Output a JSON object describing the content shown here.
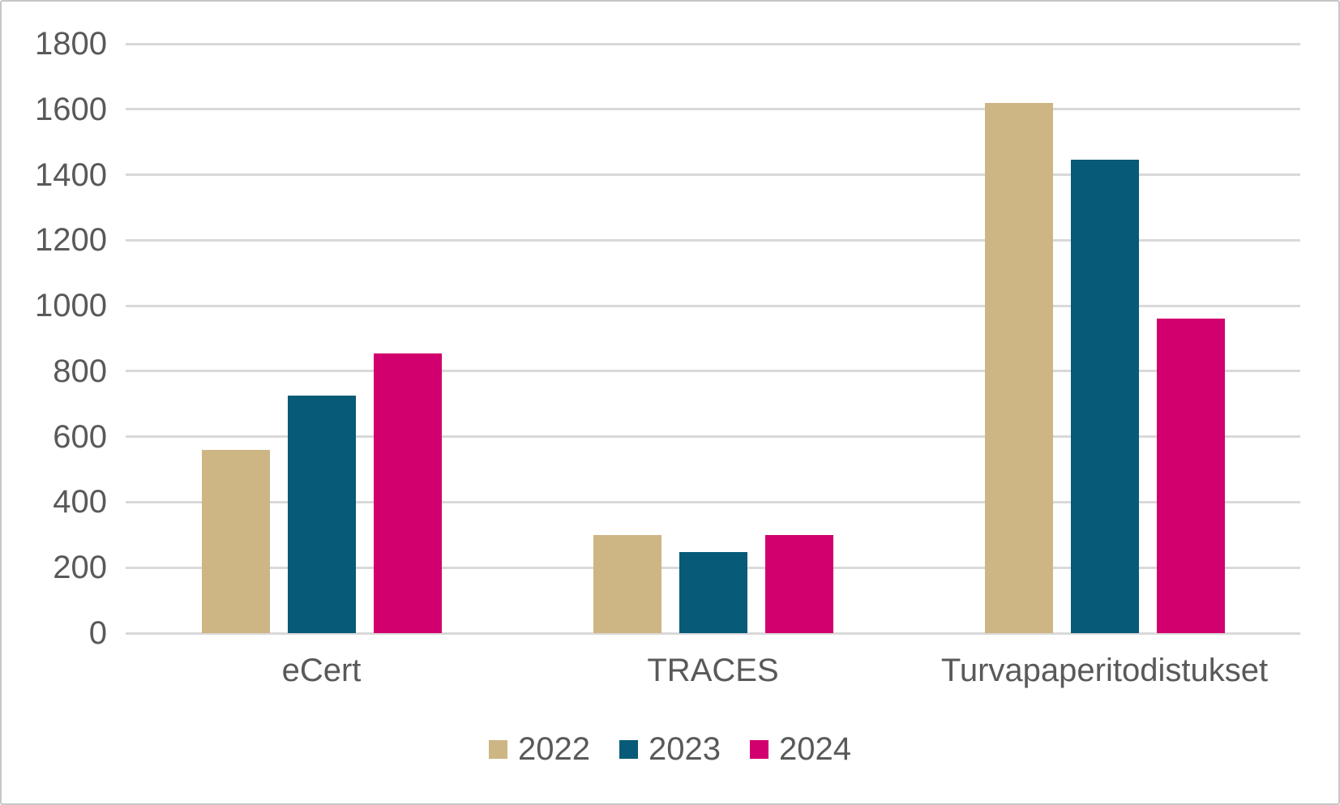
{
  "chart_data": {
    "type": "bar",
    "title": "",
    "xlabel": "",
    "ylabel": "",
    "categories": [
      "eCert",
      "TRACES",
      "Turvapaperitodistukset"
    ],
    "series": [
      {
        "name": "2022",
        "color": "#CDB584",
        "values": [
          560,
          300,
          1620
        ]
      },
      {
        "name": "2023",
        "color": "#075A78",
        "values": [
          725,
          248,
          1445
        ]
      },
      {
        "name": "2024",
        "color": "#D2006E",
        "values": [
          855,
          300,
          960
        ]
      }
    ],
    "ylim": [
      0,
      1800
    ],
    "yticks": [
      0,
      200,
      400,
      600,
      800,
      1000,
      1200,
      1400,
      1600,
      1800
    ],
    "grid": true,
    "legend_position": "bottom"
  },
  "colors": {
    "text": "#595959",
    "gridline": "#D9D9D9",
    "frame_border": "#C7C7C7",
    "background": "#FFFFFF"
  }
}
